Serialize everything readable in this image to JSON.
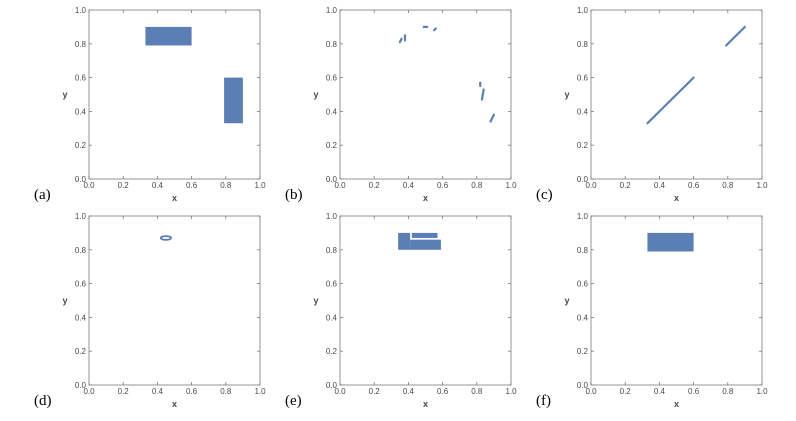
{
  "colors": {
    "mark": "#5b7fb5",
    "frame": "#7a7a7a",
    "text": "#4a4a4a"
  },
  "chart_data": [
    {
      "panel": "(a)",
      "type": "scatter",
      "xlabel": "x",
      "ylabel": "y",
      "xlim": [
        0,
        1
      ],
      "ylim": [
        0,
        1
      ],
      "xticks": [
        "0.0",
        "0.2",
        "0.4",
        "0.6",
        "0.8",
        "1.0"
      ],
      "yticks": [
        "0.0",
        "0.2",
        "0.4",
        "0.6",
        "0.8",
        "1.0"
      ],
      "regions": [
        {
          "shape": "rect",
          "x": [
            0.33,
            0.6
          ],
          "y": [
            0.79,
            0.9
          ]
        },
        {
          "shape": "rect",
          "x": [
            0.79,
            0.9
          ],
          "y": [
            0.33,
            0.6
          ]
        }
      ]
    },
    {
      "panel": "(b)",
      "type": "scatter",
      "xlabel": "x",
      "ylabel": "y",
      "xlim": [
        0,
        1
      ],
      "ylim": [
        0,
        1
      ],
      "xticks": [
        "0.0",
        "0.2",
        "0.4",
        "0.6",
        "0.8",
        "1.0"
      ],
      "yticks": [
        "0.0",
        "0.2",
        "0.4",
        "0.6",
        "0.8",
        "1.0"
      ],
      "segments": [
        {
          "x": [
            0.35,
            0.36
          ],
          "y": [
            0.81,
            0.83
          ]
        },
        {
          "x": [
            0.38,
            0.38
          ],
          "y": [
            0.82,
            0.85
          ]
        },
        {
          "x": [
            0.49,
            0.51
          ],
          "y": [
            0.9,
            0.9
          ]
        },
        {
          "x": [
            0.55,
            0.56
          ],
          "y": [
            0.88,
            0.89
          ]
        },
        {
          "x": [
            0.82,
            0.82
          ],
          "y": [
            0.55,
            0.57
          ]
        },
        {
          "x": [
            0.83,
            0.84
          ],
          "y": [
            0.47,
            0.53
          ]
        },
        {
          "x": [
            0.88,
            0.9
          ],
          "y": [
            0.34,
            0.38
          ]
        }
      ]
    },
    {
      "panel": "(c)",
      "type": "line",
      "xlabel": "x",
      "ylabel": "y",
      "xlim": [
        0,
        1
      ],
      "ylim": [
        0,
        1
      ],
      "xticks": [
        "0.0",
        "0.2",
        "0.4",
        "0.6",
        "0.8",
        "1.0"
      ],
      "yticks": [
        "0.0",
        "0.2",
        "0.4",
        "0.6",
        "0.8",
        "1.0"
      ],
      "segments": [
        {
          "x": [
            0.33,
            0.6
          ],
          "y": [
            0.33,
            0.6
          ]
        },
        {
          "x": [
            0.79,
            0.9
          ],
          "y": [
            0.79,
            0.9
          ]
        }
      ]
    },
    {
      "panel": "(d)",
      "type": "scatter",
      "xlabel": "x",
      "ylabel": "y",
      "xlim": [
        0,
        1
      ],
      "ylim": [
        0,
        1
      ],
      "xticks": [
        "0.0",
        "0.2",
        "0.4",
        "0.6",
        "0.8",
        "1.0"
      ],
      "yticks": [
        "0.0",
        "0.2",
        "0.4",
        "0.6",
        "0.8",
        "1.0"
      ],
      "ellipses": [
        {
          "cx": 0.45,
          "cy": 0.87,
          "rx": 0.03,
          "ry": 0.011
        }
      ]
    },
    {
      "panel": "(e)",
      "type": "scatter",
      "xlabel": "x",
      "ylabel": "y",
      "xlim": [
        0,
        1
      ],
      "ylim": [
        0,
        1
      ],
      "xticks": [
        "0.0",
        "0.2",
        "0.4",
        "0.6",
        "0.8",
        "1.0"
      ],
      "yticks": [
        "0.0",
        "0.2",
        "0.4",
        "0.6",
        "0.8",
        "1.0"
      ],
      "regions": [
        {
          "shape": "rect",
          "x": [
            0.34,
            0.41
          ],
          "y": [
            0.8,
            0.9
          ]
        },
        {
          "shape": "rect",
          "x": [
            0.42,
            0.57
          ],
          "y": [
            0.87,
            0.9
          ]
        },
        {
          "shape": "rect",
          "x": [
            0.41,
            0.59
          ],
          "y": [
            0.8,
            0.86
          ]
        }
      ]
    },
    {
      "panel": "(f)",
      "type": "scatter",
      "xlabel": "x",
      "ylabel": "y",
      "xlim": [
        0,
        1
      ],
      "ylim": [
        0,
        1
      ],
      "xticks": [
        "0.0",
        "0.2",
        "0.4",
        "0.6",
        "0.8",
        "1.0"
      ],
      "yticks": [
        "0.0",
        "0.2",
        "0.4",
        "0.6",
        "0.8",
        "1.0"
      ],
      "regions": [
        {
          "shape": "rect",
          "x": [
            0.33,
            0.6
          ],
          "y": [
            0.79,
            0.9
          ]
        }
      ]
    }
  ]
}
